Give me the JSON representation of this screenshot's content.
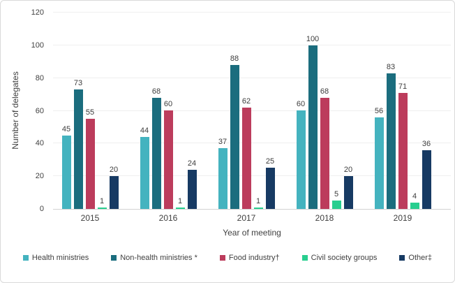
{
  "chart_data": {
    "type": "bar",
    "title": "",
    "xlabel": "Year of meeting",
    "ylabel": "Number of delegates",
    "categories": [
      "2015",
      "2016",
      "2017",
      "2018",
      "2019"
    ],
    "series": [
      {
        "name": "Health ministries",
        "color": "#44b3bf",
        "values": [
          45,
          44,
          37,
          60,
          56
        ]
      },
      {
        "name": "Non-health ministries *",
        "color": "#1b6d7e",
        "values": [
          73,
          68,
          88,
          100,
          83
        ]
      },
      {
        "name": "Food industry†",
        "color": "#bc3c5c",
        "values": [
          55,
          60,
          62,
          68,
          71
        ]
      },
      {
        "name": "Civil society groups",
        "color": "#28ce8f",
        "values": [
          1,
          1,
          1,
          5,
          4
        ]
      },
      {
        "name": "Other‡",
        "color": "#173a63",
        "values": [
          20,
          24,
          25,
          20,
          36
        ]
      }
    ],
    "ylim": [
      0,
      120
    ],
    "yticks": [
      0,
      20,
      40,
      60,
      80,
      100,
      120
    ],
    "grid": true,
    "legend_position": "bottom",
    "data_labels": true
  },
  "colors": {
    "grid": "#efefef",
    "axis_line": "#d2d2d2",
    "text": "#404040",
    "frame_border": "#d9d9d9"
  }
}
